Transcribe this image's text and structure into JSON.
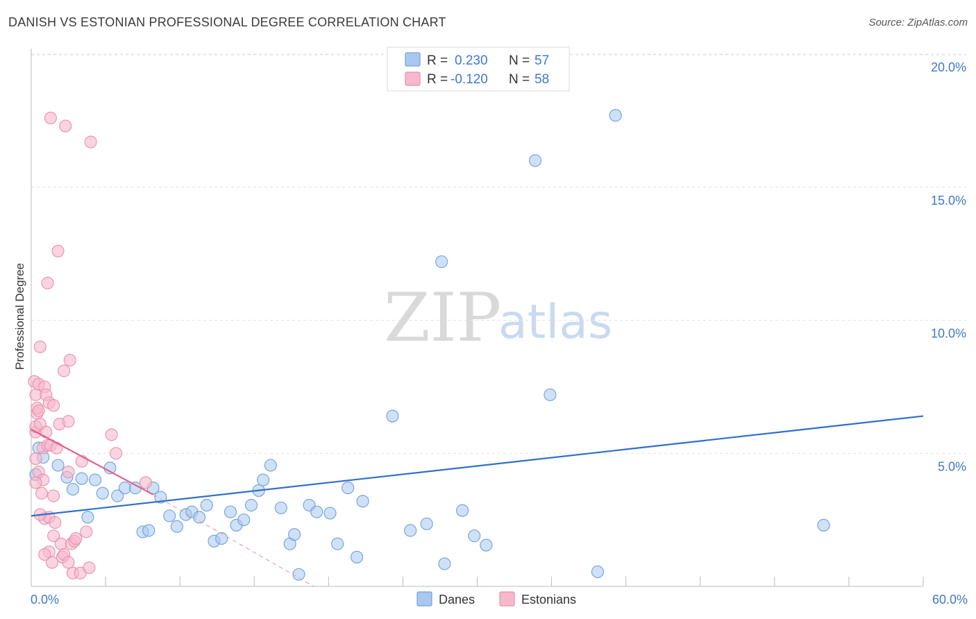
{
  "title": "DANISH VS ESTONIAN PROFESSIONAL DEGREE CORRELATION CHART",
  "source": "Source: ZipAtlas.com",
  "watermark": {
    "zip": "ZIP",
    "atlas": "atlas"
  },
  "legend": {
    "rows": [
      {
        "r_label": "R =",
        "r_value": "0.230",
        "n_label": "N =",
        "n_value": "57"
      },
      {
        "r_label": "R =",
        "r_value": "-0.120",
        "n_label": "N =",
        "n_value": "58"
      }
    ]
  },
  "bottom_legend": {
    "danes": "Danes",
    "estonians": "Estonians"
  },
  "colors": {
    "danes_fill": "#a8c8f0",
    "danes_stroke": "#6f9fd8",
    "danes_line": "#2f6fcc",
    "estonians_fill": "#f7b8cb",
    "estonians_stroke": "#e890ab",
    "estonians_line": "#e0608a",
    "grid": "#e3e3e3",
    "tick_label": "#3d78c9"
  },
  "chart_data": {
    "type": "scatter",
    "title": "DANISH VS ESTONIAN PROFESSIONAL DEGREE CORRELATION CHART",
    "xlabel": "",
    "ylabel": "Professional Degree",
    "xlim": [
      0,
      60
    ],
    "ylim": [
      0,
      20.5
    ],
    "x_tick_labels": [
      {
        "value": 0,
        "label": "0.0%"
      },
      {
        "value": 60,
        "label": "60.0%"
      }
    ],
    "y_tick_labels": [
      {
        "value": 5,
        "label": "5.0%"
      },
      {
        "value": 10,
        "label": "10.0%"
      },
      {
        "value": 15,
        "label": "15.0%"
      },
      {
        "value": 20,
        "label": "20.0%"
      }
    ],
    "series": [
      {
        "name": "Danes",
        "R": 0.23,
        "N": 57,
        "trend": {
          "x": [
            0,
            60
          ],
          "y": [
            2.65,
            6.4
          ]
        },
        "points": [
          [
            0.3,
            4.2
          ],
          [
            0.5,
            5.2
          ],
          [
            0.8,
            4.85
          ],
          [
            1.8,
            4.55
          ],
          [
            2.4,
            4.1
          ],
          [
            2.8,
            3.65
          ],
          [
            3.4,
            4.05
          ],
          [
            3.8,
            2.6
          ],
          [
            4.3,
            4.0
          ],
          [
            4.8,
            3.5
          ],
          [
            5.3,
            4.45
          ],
          [
            5.8,
            3.4
          ],
          [
            6.3,
            3.7
          ],
          [
            7.0,
            3.7
          ],
          [
            7.5,
            2.05
          ],
          [
            7.9,
            2.1
          ],
          [
            8.2,
            3.7
          ],
          [
            8.7,
            3.35
          ],
          [
            9.3,
            2.65
          ],
          [
            9.8,
            2.25
          ],
          [
            10.4,
            2.7
          ],
          [
            10.8,
            2.8
          ],
          [
            11.3,
            2.6
          ],
          [
            11.8,
            3.05
          ],
          [
            12.3,
            1.7
          ],
          [
            12.8,
            1.8
          ],
          [
            13.4,
            2.8
          ],
          [
            13.8,
            2.3
          ],
          [
            14.3,
            2.5
          ],
          [
            14.8,
            3.05
          ],
          [
            15.3,
            3.6
          ],
          [
            15.6,
            4.0
          ],
          [
            16.1,
            4.55
          ],
          [
            16.8,
            2.95
          ],
          [
            17.4,
            1.6
          ],
          [
            17.7,
            1.95
          ],
          [
            18.0,
            0.45
          ],
          [
            18.7,
            3.05
          ],
          [
            19.2,
            2.8
          ],
          [
            20.1,
            2.75
          ],
          [
            20.6,
            1.6
          ],
          [
            21.3,
            3.7
          ],
          [
            21.9,
            1.1
          ],
          [
            22.3,
            3.2
          ],
          [
            24.3,
            6.4
          ],
          [
            25.5,
            2.1
          ],
          [
            26.6,
            2.35
          ],
          [
            27.6,
            12.2
          ],
          [
            27.8,
            0.85
          ],
          [
            29.0,
            2.85
          ],
          [
            29.8,
            1.9
          ],
          [
            30.6,
            1.55
          ],
          [
            33.9,
            16.0
          ],
          [
            34.9,
            7.2
          ],
          [
            38.1,
            0.55
          ],
          [
            39.3,
            17.7
          ],
          [
            53.3,
            2.3
          ]
        ]
      },
      {
        "name": "Estonians",
        "R": -0.12,
        "N": 58,
        "trend": {
          "x": [
            0,
            8.2
          ],
          "y": [
            5.9,
            3.45
          ]
        },
        "trend_dashed": {
          "x": [
            8.2,
            19.0
          ],
          "y": [
            3.45,
            0
          ]
        },
        "points": [
          [
            0.2,
            7.7
          ],
          [
            0.3,
            5.8
          ],
          [
            0.3,
            7.2
          ],
          [
            0.3,
            6.0
          ],
          [
            0.3,
            4.8
          ],
          [
            0.4,
            6.5
          ],
          [
            0.4,
            6.7
          ],
          [
            0.5,
            6.6
          ],
          [
            0.5,
            7.6
          ],
          [
            0.5,
            4.3
          ],
          [
            0.6,
            6.1
          ],
          [
            0.6,
            9.0
          ],
          [
            0.7,
            3.5
          ],
          [
            0.8,
            5.2
          ],
          [
            0.8,
            4.0
          ],
          [
            0.9,
            2.55
          ],
          [
            0.9,
            7.5
          ],
          [
            1.0,
            7.2
          ],
          [
            1.0,
            5.8
          ],
          [
            1.1,
            5.3
          ],
          [
            1.1,
            11.4
          ],
          [
            1.2,
            2.6
          ],
          [
            1.2,
            1.3
          ],
          [
            1.2,
            6.9
          ],
          [
            1.3,
            17.6
          ],
          [
            1.3,
            5.3
          ],
          [
            1.4,
            0.9
          ],
          [
            1.5,
            1.9
          ],
          [
            1.5,
            6.8
          ],
          [
            1.6,
            2.4
          ],
          [
            1.7,
            5.2
          ],
          [
            1.8,
            12.6
          ],
          [
            1.9,
            6.1
          ],
          [
            2.0,
            1.6
          ],
          [
            2.1,
            1.1
          ],
          [
            2.2,
            1.2
          ],
          [
            2.2,
            8.1
          ],
          [
            2.3,
            17.3
          ],
          [
            2.5,
            0.9
          ],
          [
            2.5,
            4.3
          ],
          [
            2.5,
            6.2
          ],
          [
            2.6,
            8.5
          ],
          [
            2.7,
            1.6
          ],
          [
            2.8,
            0.5
          ],
          [
            2.9,
            1.7
          ],
          [
            3.0,
            1.8
          ],
          [
            3.3,
            0.5
          ],
          [
            3.4,
            4.7
          ],
          [
            3.7,
            2.05
          ],
          [
            3.9,
            0.7
          ],
          [
            4.0,
            16.7
          ],
          [
            5.4,
            5.7
          ],
          [
            5.7,
            5.0
          ],
          [
            7.7,
            3.9
          ],
          [
            0.3,
            3.9
          ],
          [
            0.6,
            2.7
          ],
          [
            0.9,
            1.2
          ],
          [
            1.5,
            3.4
          ]
        ]
      }
    ]
  }
}
